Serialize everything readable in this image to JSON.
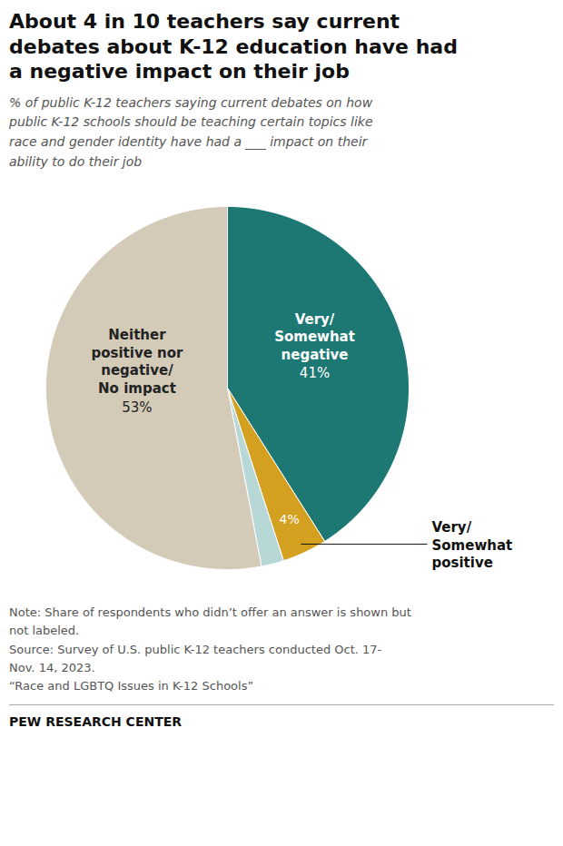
{
  "chart_data": {
    "type": "pie",
    "title": "About 4 in 10 teachers say current\ndebates about K-12 education have had\na negative impact on their job",
    "subtitle": "% of public K-12 teachers saying current debates on how\npublic K-12 schools should be teaching certain topics like\nrace and gender identity have had a       impact on their\nability to do their job",
    "categories": [
      "Very/\nSomewhat\nnegative",
      "Very/\nSomewhat\npositive",
      null,
      "Neither\npositive nor\nnegative/\nNo impact"
    ],
    "values": [
      41,
      4,
      2,
      53
    ],
    "value_labels": [
      "41%",
      "4%",
      null,
      "53%"
    ],
    "colors": [
      "#1d7874",
      "#d4a020",
      "#b8d8d8",
      "#d3cbb8"
    ],
    "data_labels": true,
    "note": "Note: Share of respondents who didn’t offer an answer is shown but\nnot labeled.\nSource: Survey of U.S. public K-12 teachers conducted Oct. 17-\nNov. 14, 2023.\n“Race and LGBTQ Issues in K-12 Schools”",
    "footer": "PEW RESEARCH CENTER"
  }
}
